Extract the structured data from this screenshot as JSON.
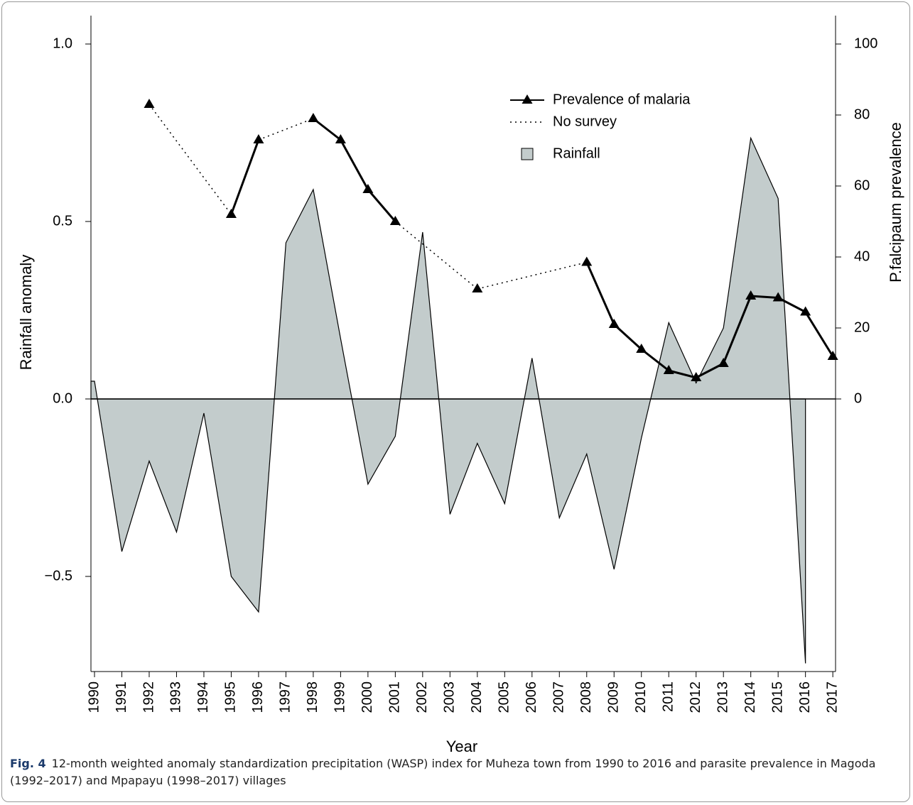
{
  "chart_data": {
    "type": "area-line",
    "x_label": "Year",
    "y_label": "Rainfall anomaly",
    "y2_label": "P.falcipaum prevalence",
    "x": [
      1990,
      1991,
      1992,
      1993,
      1994,
      1995,
      1996,
      1997,
      1998,
      1999,
      2000,
      2001,
      2002,
      2003,
      2004,
      2005,
      2006,
      2007,
      2008,
      2009,
      2010,
      2011,
      2012,
      2013,
      2014,
      2015,
      2016,
      2017
    ],
    "xlim": [
      1989.87,
      2017.1
    ],
    "ylim": [
      -0.768,
      1.08
    ],
    "yticks": [
      {
        "value": -0.5,
        "label": "−0.5"
      },
      {
        "value": 0,
        "label": "0.0"
      },
      {
        "value": 0.5,
        "label": "0.5"
      },
      {
        "value": 1,
        "label": "1.0"
      }
    ],
    "y2lim": [
      -76.8,
      108
    ],
    "y2ticks": [
      0,
      20,
      40,
      60,
      80,
      100
    ],
    "series": [
      {
        "name": "Rainfall",
        "type": "area",
        "color": "#c3cccc",
        "values": [
          0.05,
          -0.43,
          -0.175,
          -0.375,
          -0.04,
          -0.5,
          -0.6,
          0.44,
          0.59,
          0.17,
          -0.24,
          -0.105,
          0.47,
          -0.325,
          -0.125,
          -0.295,
          0.115,
          -0.335,
          -0.155,
          -0.48,
          -0.11,
          0.215,
          0.045,
          0.2,
          0.735,
          0.565,
          -0.745,
          null
        ]
      },
      {
        "name": "Prevalence of malaria",
        "type": "line",
        "axis": "y2",
        "color": "#000000",
        "values": [
          null,
          null,
          83,
          null,
          null,
          52,
          73,
          null,
          79,
          73,
          59,
          50,
          null,
          null,
          31,
          null,
          null,
          null,
          38.5,
          21,
          14,
          8,
          6,
          10,
          29,
          28.5,
          24.5,
          12
        ]
      }
    ],
    "gap_legend": "No survey",
    "caption": {
      "label": "Fig. 4",
      "text": "12-month weighted anomaly standardization precipitation (WASP) index for Muheza town from 1990 to 2016 and parasite prevalence in Magoda (1992–2017) and Mpapayu (1998–2017) villages"
    }
  }
}
